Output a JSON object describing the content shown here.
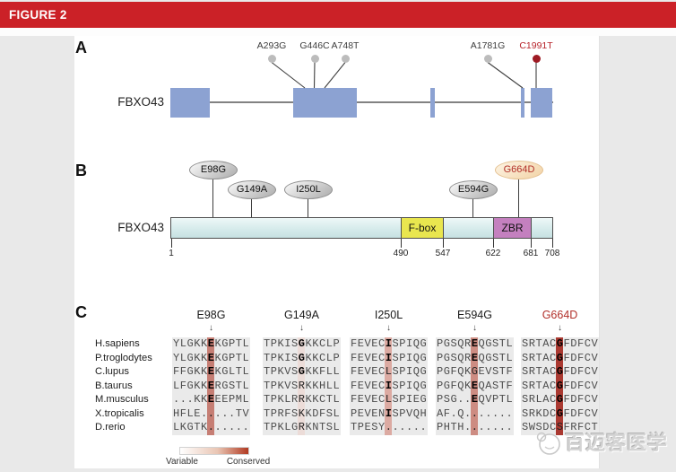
{
  "figure_header": {
    "title": "FIGURE 2"
  },
  "colors": {
    "header_red": "#cb2127",
    "exon_blue": "#8ca2d2",
    "protein_bar": "#d6ebeb",
    "fbox_yellow": "#e9e64f",
    "zbr_purple": "#c480bf",
    "novel_mutation_red": "#b2302a",
    "conserved_dark": "#b13a22"
  },
  "panelA": {
    "label": "A",
    "gene_name": "FBXO43",
    "mutations": [
      {
        "label": "A293G",
        "dot_color": "#bcbcbc",
        "label_color": "#3d3d3d"
      },
      {
        "label": "G446C",
        "dot_color": "#bcbcbc",
        "label_color": "#3d3d3d"
      },
      {
        "label": "A748T",
        "dot_color": "#bcbcbc",
        "label_color": "#3d3d3d"
      },
      {
        "label": "A1781G",
        "dot_color": "#bcbcbc",
        "label_color": "#3d3d3d"
      },
      {
        "label": "C1991T",
        "dot_color": "#9e1b24",
        "label_color": "#b7242b"
      }
    ]
  },
  "panelB": {
    "label": "B",
    "protein_name": "FBXO43",
    "domains": [
      {
        "name": "F-box",
        "start": "490",
        "end": "547"
      },
      {
        "name": "ZBR",
        "start": "622",
        "end": "681"
      }
    ],
    "scale_ticks": [
      "1",
      "490",
      "547",
      "622",
      "681",
      "708"
    ],
    "mutations": [
      {
        "label": "E98G",
        "style": "gray"
      },
      {
        "label": "G149A",
        "style": "gray"
      },
      {
        "label": "I250L",
        "style": "gray"
      },
      {
        "label": "E594G",
        "style": "gray"
      },
      {
        "label": "G664D",
        "style": "peach"
      }
    ]
  },
  "panelC": {
    "label": "C",
    "species": [
      "H.sapiens",
      "P.troglodytes",
      "C.lupus",
      "B.taurus",
      "M.musculus",
      "X.tropicalis",
      "D.rerio"
    ],
    "columns": [
      {
        "header": "E98G",
        "header_color": "#1a1a1a",
        "highlight": "#c67e74",
        "rows": [
          {
            "seq": "YLGKKEKGPTL",
            "bold": true
          },
          {
            "seq": "YLGKKEKGPTL",
            "bold": true
          },
          {
            "seq": "FFGKKEKGLTL",
            "bold": true
          },
          {
            "seq": "LFGKKERGSTL",
            "bold": true
          },
          {
            "seq": "...KKEEEPML",
            "bold": true
          },
          {
            "seq": "HFLE.....TV",
            "bold": false
          },
          {
            "seq": "LKGTK......",
            "bold": false
          }
        ]
      },
      {
        "header": "G149A",
        "header_color": "#1a1a1a",
        "highlight": "#ecdcd8",
        "rows": [
          {
            "seq": "TPKISGKKCLP",
            "bold": true
          },
          {
            "seq": "TPKISGKKCLP",
            "bold": true
          },
          {
            "seq": "TPKVSGKKFLL",
            "bold": true
          },
          {
            "seq": "TPKVSRKKHLL",
            "bold": false
          },
          {
            "seq": "TPKLRRKKCTL",
            "bold": false
          },
          {
            "seq": "TPRFSKKDFSL",
            "bold": false
          },
          {
            "seq": "TPKLGRKNTSL",
            "bold": false
          }
        ]
      },
      {
        "header": "I250L",
        "header_color": "#1a1a1a",
        "highlight": "#dcaaa2",
        "rows": [
          {
            "seq": "FEVECISPIQG",
            "bold": true
          },
          {
            "seq": "FEVECISPIQG",
            "bold": true
          },
          {
            "seq": "FEVECLSPIQG",
            "bold": false
          },
          {
            "seq": "FEVECISPIQG",
            "bold": true
          },
          {
            "seq": "FEVECLSPIEG",
            "bold": false
          },
          {
            "seq": "PEVENISPVQH",
            "bold": true
          },
          {
            "seq": "TPESY......",
            "bold": false
          }
        ]
      },
      {
        "header": "E594G",
        "header_color": "#1a1a1a",
        "highlight": "#cd8c82",
        "rows": [
          {
            "seq": "PGSQREQGSTL",
            "bold": true
          },
          {
            "seq": "PGSQREQGSTL",
            "bold": true
          },
          {
            "seq": "PGFQKGEVSTF",
            "bold": false
          },
          {
            "seq": "PGFQKEQASTF",
            "bold": true
          },
          {
            "seq": "PSG..EQVPTL",
            "bold": true
          },
          {
            "seq": "AF.Q.......",
            "bold": false
          },
          {
            "seq": "PHTH.......",
            "bold": false
          }
        ]
      },
      {
        "header": "G664D",
        "header_color": "#b2302a",
        "highlight": "#aa3931",
        "rows": [
          {
            "seq": "SRTACGFDFCV",
            "bold": true
          },
          {
            "seq": "SRTACGFDFCV",
            "bold": true
          },
          {
            "seq": "SRTACGFDFCV",
            "bold": true
          },
          {
            "seq": "SRTACGFDFCV",
            "bold": true
          },
          {
            "seq": "SRLACGFDFCV",
            "bold": true
          },
          {
            "seq": "SRKDCGFDFCV",
            "bold": true
          },
          {
            "seq": "SWSDCSFRFCT",
            "bold": false
          }
        ]
      }
    ],
    "legend": {
      "left_label": "Variable",
      "right_label": "Conserved",
      "gradient_from": "#ffffff",
      "gradient_to": "#b13a22"
    }
  },
  "watermark": {
    "text": "百迈客医学"
  }
}
